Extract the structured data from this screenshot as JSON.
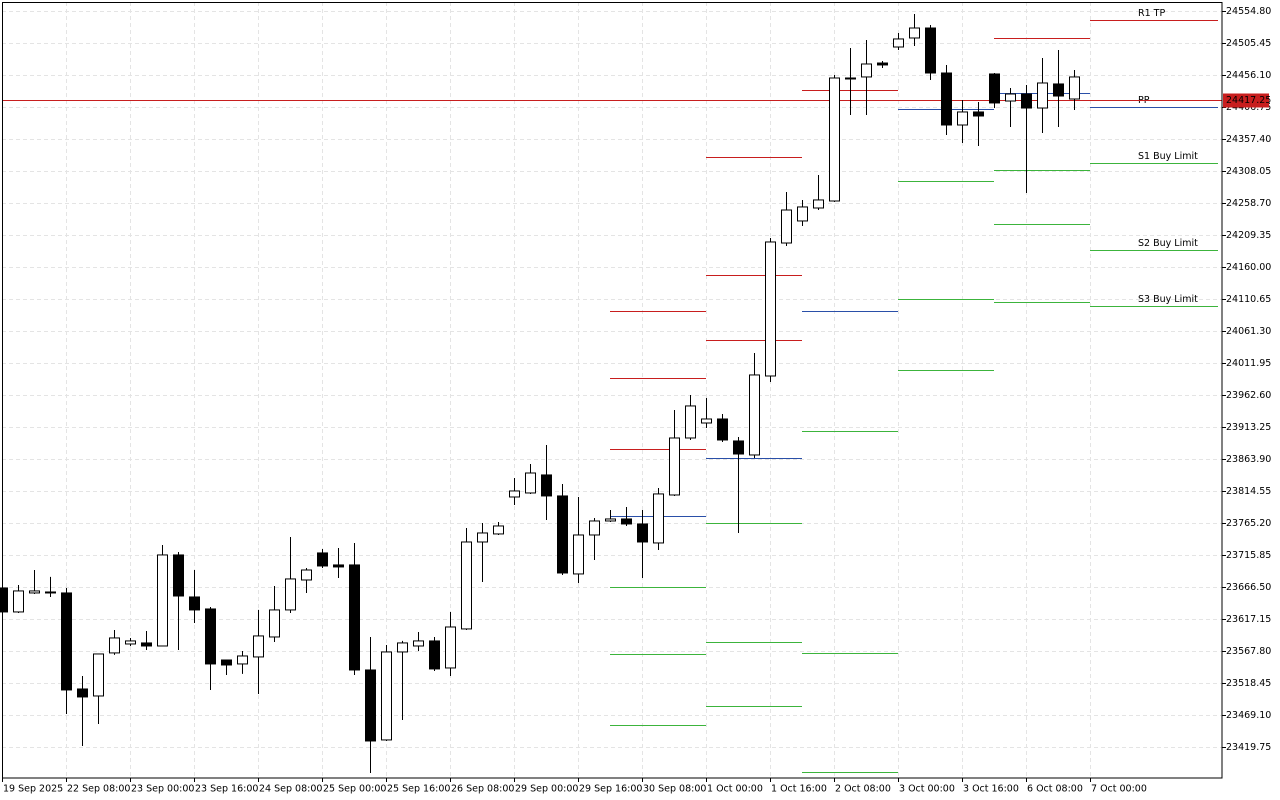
{
  "chart_data": {
    "type": "candlestick",
    "categories": [
      "19 Sep 2025",
      null,
      null,
      null,
      "22 Sep 08:00",
      null,
      null,
      null,
      "23 Sep 00:00",
      null,
      null,
      null,
      "23 Sep 16:00",
      null,
      null,
      null,
      "24 Sep 08:00",
      null,
      null,
      null,
      "25 Sep 00:00",
      null,
      null,
      null,
      "25 Sep 16:00",
      null,
      null,
      null,
      "26 Sep 08:00",
      null,
      null,
      null,
      "29 Sep 00:00",
      null,
      null,
      null,
      "29 Sep 16:00",
      null,
      null,
      null,
      "30 Sep 08:00",
      null,
      null,
      null,
      "1 Oct 00:00",
      null,
      null,
      null,
      "1 Oct 16:00",
      null,
      null,
      null,
      "2 Oct 08:00",
      null,
      null,
      null,
      "3 Oct 00:00",
      null,
      null,
      null,
      "3 Oct 16:00",
      null,
      null,
      null,
      "6 Oct 08:00",
      null,
      null,
      null,
      "7 Oct 00:00"
    ],
    "open": [
      23665.0,
      23628.0,
      23657.3,
      23658.8,
      23657.3,
      23509.2,
      23498.4,
      23564.8,
      23578.6,
      23580.2,
      23575.5,
      23715.9,
      23651.1,
      23632.6,
      23553.9,
      23547.8,
      23558.6,
      23589.4,
      23631.1,
      23677.3,
      23719.0,
      23700.5,
      23700.5,
      23538.5,
      23430.6,
      23566.3,
      23575.5,
      23583.3,
      23541.6,
      23601.8,
      23735.9,
      23748.3,
      23805.3,
      23811.5,
      23839.3,
      23806.9,
      23686.6,
      23746.7,
      23768.3,
      23771.4,
      23763.7,
      23734.4,
      23808.4,
      23896.3,
      23919.4,
      23925.6,
      23891.7,
      23870.1,
      23991.9,
      24197.0,
      24231.0,
      24251.0,
      24261.8,
      24450.0,
      24453.1,
      24474.6,
      24499.3,
      24513.2,
      24528.6,
      24459.2,
      24379.0,
      24399.1,
      24457.7,
      24416.0,
      24426.8,
      24405.2,
      24442.3,
      24419.1,
      null
    ],
    "high": [
      23669.6,
      23669.6,
      23692.7,
      23682.0,
      23665.0,
      23529.3,
      23563.2,
      23600.2,
      23587.9,
      23598.7,
      23731.3,
      23720.5,
      23692.7,
      23635.7,
      23553.9,
      23567.8,
      23631.1,
      23668.1,
      23743.6,
      23695.8,
      23725.1,
      23726.7,
      23734.4,
      23589.4,
      23577.1,
      23583.3,
      23597.1,
      23589.4,
      23628.0,
      23757.5,
      23765.2,
      23766.8,
      23834.6,
      23856.2,
      23885.5,
      23825.4,
      23805.3,
      23772.9,
      23785.3,
      23789.9,
      23785.3,
      23819.2,
      23939.5,
      23962.6,
      23958.0,
      23933.3,
      23897.9,
      24027.4,
      24204.8,
      24275.7,
      24263.4,
      24301.9,
      24456.1,
      24497.8,
      24510.1,
      24477.7,
      24520.9,
      24550.2,
      24533.2,
      24471.6,
      24417.6,
      24414.5,
      24459.2,
      24436.1,
      24440.7,
      24482.4,
      24494.7,
      24463.8,
      null
    ],
    "low": [
      23626.4,
      23626.4,
      23655.7,
      23651.1,
      23470.7,
      23421.3,
      23455.2,
      23561.7,
      23575.5,
      23569.4,
      23575.5,
      23569.4,
      23611.0,
      23507.7,
      23530.8,
      23532.4,
      23501.5,
      23581.7,
      23626.4,
      23657.3,
      23695.8,
      23680.4,
      23530.8,
      23379.7,
      23429.0,
      23461.4,
      23567.8,
      23537.0,
      23529.3,
      23600.2,
      23674.2,
      23746.7,
      23793.0,
      23810.0,
      23769.9,
      23685.0,
      23672.7,
      23708.2,
      23766.8,
      23760.6,
      23680.4,
      23723.6,
      23806.9,
      23893.2,
      23911.7,
      23890.1,
      23749.8,
      23865.5,
      23982.7,
      24192.4,
      24223.3,
      24247.9,
      24260.3,
      24394.4,
      24394.4,
      24466.9,
      24494.7,
      24500.9,
      24448.4,
      24363.6,
      24351.3,
      24346.6,
      24405.2,
      24375.9,
      24274.2,
      24366.7,
      24375.9,
      24402.2,
      null
    ],
    "close": [
      23628.0,
      23660.4,
      23660.4,
      23657.3,
      23507.7,
      23496.9,
      23563.2,
      23587.9,
      23583.3,
      23575.5,
      23715.9,
      23652.6,
      23631.1,
      23547.8,
      23546.2,
      23560.1,
      23591.0,
      23631.1,
      23678.9,
      23692.7,
      23698.9,
      23697.4,
      23538.5,
      23429.0,
      23566.3,
      23580.2,
      23583.3,
      23540.1,
      23604.8,
      23735.9,
      23749.8,
      23760.6,
      23814.6,
      23842.3,
      23806.9,
      23688.1,
      23746.7,
      23768.3,
      23771.4,
      23763.7,
      23735.9,
      23810.0,
      23896.3,
      23945.7,
      23925.6,
      23893.2,
      23871.6,
      23993.5,
      24198.6,
      24247.9,
      24252.6,
      24263.4,
      24451.5,
      24451.5,
      24473.1,
      24471.6,
      24511.7,
      24528.6,
      24459.2,
      24379.0,
      24399.1,
      24392.9,
      24413.0,
      24426.8,
      24405.2,
      24443.8,
      24423.7,
      24453.1,
      null
    ],
    "up_color": "#ffffff",
    "down_color": "#000000",
    "ylim": [
      23371.9,
      24568.7
    ],
    "yticks": [
      {
        "value": 24554.8,
        "label": "24554.80"
      },
      24505.45,
      {
        "value": 24456.1,
        "label": "24456.10"
      },
      24406.75,
      {
        "value": 24357.4,
        "label": "24357.40"
      },
      24308.05,
      {
        "value": 24258.7,
        "label": "24258.70"
      },
      24209.35,
      {
        "value": 24160,
        "label": "24160.00"
      },
      24110.65,
      {
        "value": 24061.3,
        "label": "24061.30"
      },
      24011.95,
      {
        "value": 23962.6,
        "label": "23962.60"
      },
      23913.25,
      {
        "value": 23863.9,
        "label": "23863.90"
      },
      23814.55,
      {
        "value": 23765.2,
        "label": "23765.20"
      },
      23715.85,
      {
        "value": 23666.5,
        "label": "23666.50"
      },
      23617.15,
      {
        "value": 23567.8,
        "label": "23567.80"
      },
      23518.45,
      {
        "value": 23469.1,
        "label": "23469.10"
      },
      23419.75
    ],
    "grid": true,
    "current_price": 24417.25,
    "current_price_color": "#c81e1e",
    "pivot_colors": {
      "resistance": "#c81e1e",
      "pivot": "#2a4fa8",
      "support": "#3cb43c"
    },
    "pivots": [
      {
        "resistance": [
          24092.2,
          23988.8,
          23879.4
        ],
        "pivot": [
          23776.0
        ],
        "support": [
          23666.5,
          23563.2,
          23453.7
        ]
      },
      {
        "resistance": [
          24329.7,
          24147.7,
          24047.5
        ],
        "pivot": [
          23865.5
        ],
        "support": [
          23765.2,
          23581.7,
          23483.0
        ]
      },
      {
        "resistance": [
          24433.0
        ],
        "pivot": [
          24092.2
        ],
        "support": [
          23907.1,
          23564.8,
          23381.2
        ]
      },
      {
        "resistance": [],
        "pivot": [
          24403.7
        ],
        "support": [
          24292.7,
          24110.7,
          24001.2
        ]
      },
      {
        "resistance": [
          24513.2
        ],
        "pivot": [
          24428.4
        ],
        "support": [
          24309.6,
          24226.3,
          24106.1
        ]
      },
      {
        "resistance": [
          24541.0
        ],
        "resistance_labels": [
          "R1 TP"
        ],
        "pivot": [
          24406.8
        ],
        "pivot_labels": [
          "PP"
        ],
        "support": [
          24320.4,
          24186.2,
          24099.9
        ],
        "support_labels": [
          "S1 Buy Limit",
          "S2 Buy Limit",
          "S3 Buy Limit"
        ]
      }
    ]
  }
}
